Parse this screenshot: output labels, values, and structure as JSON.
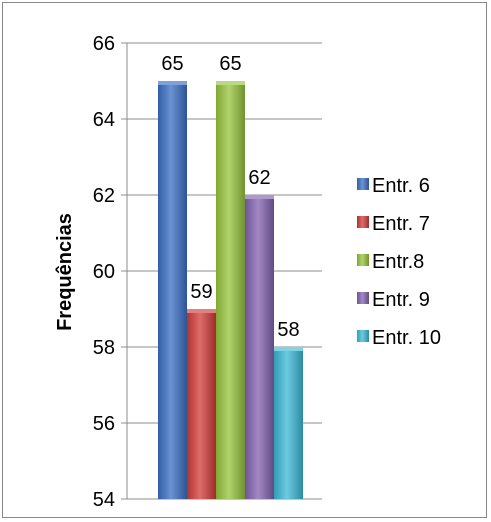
{
  "chart_data": {
    "type": "bar",
    "title": "",
    "xlabel": "",
    "ylabel": "Frequências",
    "ylim": [
      54,
      66
    ],
    "yticks": [
      54,
      56,
      58,
      60,
      62,
      64,
      66
    ],
    "grid": true,
    "legend_position": "right",
    "series": [
      {
        "name": "Entr. 6",
        "value": 65,
        "label": "65",
        "color": "#3a6fc4"
      },
      {
        "name": "Entr. 7",
        "value": 59,
        "label": "59",
        "color": "#d13b38"
      },
      {
        "name": "Entr.8",
        "value": 65,
        "label": "65",
        "color": "#97c43c"
      },
      {
        "name": "Entr. 9",
        "value": 62,
        "label": "62",
        "color": "#8362b0"
      },
      {
        "name": "Entr. 10",
        "value": 58,
        "label": "58",
        "color": "#3bb9d6"
      }
    ]
  }
}
